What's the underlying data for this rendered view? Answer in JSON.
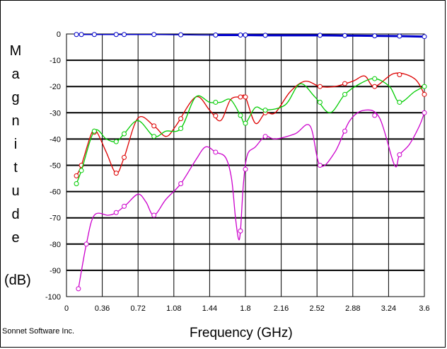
{
  "chart_data": {
    "type": "line",
    "xlabel": "Frequency (GHz)",
    "ylabel_letters": [
      "M",
      "a",
      "g",
      "n",
      "i",
      "t",
      "u",
      "d",
      "e"
    ],
    "ylabel_unit": "(dB)",
    "credit": "Sonnet Software Inc.",
    "xlim": [
      0,
      3.6
    ],
    "ylim": [
      -100,
      0
    ],
    "xticks": [
      "0",
      "0.36",
      "0.72",
      "1.08",
      "1.44",
      "1.8",
      "2.16",
      "2.52",
      "2.88",
      "3.24",
      "3.6"
    ],
    "yticks": [
      "0",
      "-10",
      "-20",
      "-30",
      "-40",
      "-50",
      "-60",
      "-70",
      "-80",
      "-90",
      "-100"
    ],
    "grid": true,
    "series": [
      {
        "color": "#0000cc",
        "x": [
          0.1,
          0.15,
          0.28,
          0.5,
          0.58,
          0.88,
          1.15,
          1.5,
          1.75,
          1.8,
          2.0,
          2.55,
          2.8,
          3.1,
          3.35,
          3.6
        ],
        "y": [
          -0.2,
          -0.2,
          -0.2,
          -0.2,
          -0.2,
          -0.2,
          -0.3,
          -0.4,
          -0.4,
          -0.4,
          -0.5,
          -0.5,
          -0.6,
          -0.7,
          -0.8,
          -1.0
        ],
        "markers_x": [
          0.1,
          0.15,
          0.28,
          0.5,
          0.58,
          0.88,
          1.15,
          1.5,
          1.75,
          1.8,
          2.0,
          2.55,
          2.8,
          3.1,
          3.35,
          3.6
        ]
      },
      {
        "color": "#dd0000",
        "x": [
          0.1,
          0.15,
          0.25,
          0.3,
          0.4,
          0.5,
          0.58,
          0.72,
          0.88,
          1.0,
          1.1,
          1.3,
          1.44,
          1.55,
          1.65,
          1.75,
          1.8,
          1.9,
          2.0,
          2.1,
          2.25,
          2.4,
          2.55,
          2.7,
          2.88,
          3.0,
          3.1,
          3.3,
          3.5,
          3.6
        ],
        "y": [
          -54,
          -50,
          -38,
          -37,
          -45,
          -53,
          -47,
          -32,
          -35,
          -39,
          -35,
          -24,
          -29,
          -33,
          -25,
          -24,
          -24,
          -34,
          -30,
          -30,
          -22,
          -18,
          -20,
          -20,
          -18,
          -16,
          -20,
          -15,
          -17,
          -23
        ],
        "markers_x": [
          0.1,
          0.15,
          0.28,
          0.5,
          0.58,
          0.88,
          1.15,
          1.5,
          1.75,
          1.8,
          2.0,
          2.55,
          2.8,
          3.1,
          3.35,
          3.6
        ]
      },
      {
        "color": "#00cc00",
        "x": [
          0.1,
          0.15,
          0.28,
          0.4,
          0.5,
          0.58,
          0.72,
          0.88,
          1.0,
          1.15,
          1.3,
          1.44,
          1.55,
          1.65,
          1.75,
          1.8,
          1.9,
          2.0,
          2.2,
          2.35,
          2.5,
          2.65,
          2.8,
          2.95,
          3.1,
          3.25,
          3.35,
          3.5,
          3.6
        ],
        "y": [
          -57,
          -52,
          -37,
          -40,
          -41,
          -38,
          -33,
          -39,
          -37,
          -36,
          -24,
          -26,
          -26,
          -25,
          -31,
          -34,
          -28,
          -29,
          -27,
          -19,
          -24,
          -30,
          -23,
          -19,
          -17,
          -20,
          -26,
          -22,
          -20
        ],
        "markers_x": [
          0.1,
          0.15,
          0.28,
          0.5,
          0.58,
          0.88,
          1.15,
          1.5,
          1.75,
          1.8,
          2.0,
          2.55,
          2.8,
          3.1,
          3.35,
          3.6
        ]
      },
      {
        "color": "#cc00cc",
        "x": [
          0.12,
          0.2,
          0.28,
          0.42,
          0.5,
          0.6,
          0.72,
          0.8,
          0.88,
          1.0,
          1.15,
          1.3,
          1.4,
          1.5,
          1.6,
          1.66,
          1.7,
          1.73,
          1.75,
          1.78,
          1.82,
          1.9,
          2.0,
          2.1,
          2.3,
          2.45,
          2.55,
          2.7,
          2.85,
          3.0,
          3.15,
          3.3,
          3.35,
          3.45,
          3.55,
          3.6
        ],
        "y": [
          -97,
          -80,
          -69,
          -69,
          -68,
          -65,
          -61,
          -64,
          -69,
          -63,
          -57,
          -48,
          -43,
          -45,
          -47,
          -55,
          -70,
          -78,
          -75,
          -57,
          -46,
          -43,
          -39,
          -40,
          -38,
          -35,
          -50,
          -45,
          -33,
          -29,
          -32,
          -50,
          -46,
          -42,
          -35,
          -30
        ],
        "markers_x": [
          0.12,
          0.2,
          0.5,
          0.58,
          0.88,
          1.15,
          1.5,
          1.75,
          1.8,
          2.0,
          2.55,
          2.8,
          3.1,
          3.35,
          3.6
        ]
      }
    ]
  }
}
